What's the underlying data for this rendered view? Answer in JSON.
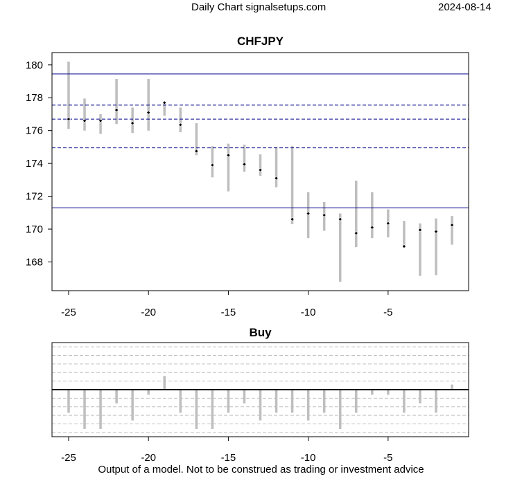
{
  "header": {
    "left_text": "Daily Chart signalsetups.com",
    "date": "2024-08-14",
    "footer": "Output of a model. Not to be construed as trading or investment advice"
  },
  "colors": {
    "bar": "#bebebe",
    "level_line": "#00008b",
    "grid": "#c0c0c0",
    "point": "#000000"
  },
  "chart_data": [
    {
      "type": "range_bar",
      "title": "CHFJPY",
      "xlim": [
        -26.04,
        0.04
      ],
      "ylim": [
        166.25,
        180.75
      ],
      "xticks": [
        -25,
        -20,
        -15,
        -10,
        -5
      ],
      "yticks": [
        168,
        170,
        172,
        174,
        176,
        178,
        180
      ],
      "solid_levels": [
        179.45,
        171.3
      ],
      "dashed_levels": [
        177.55,
        176.7,
        174.95
      ],
      "points": [
        {
          "x": -25,
          "low": 176.1,
          "high": 180.2,
          "close": 176.7
        },
        {
          "x": -24,
          "low": 176.0,
          "high": 177.95,
          "close": 176.6
        },
        {
          "x": -23,
          "low": 175.8,
          "high": 177.0,
          "close": 176.6
        },
        {
          "x": -22,
          "low": 176.4,
          "high": 179.15,
          "close": 177.25
        },
        {
          "x": -21,
          "low": 175.85,
          "high": 177.4,
          "close": 176.45
        },
        {
          "x": -20,
          "low": 176.0,
          "high": 179.15,
          "close": 177.1
        },
        {
          "x": -19,
          "low": 176.9,
          "high": 177.75,
          "close": 177.7
        },
        {
          "x": -18,
          "low": 175.9,
          "high": 177.4,
          "close": 176.35
        },
        {
          "x": -17,
          "low": 174.5,
          "high": 176.45,
          "close": 174.75
        },
        {
          "x": -16,
          "low": 173.15,
          "high": 175.05,
          "close": 173.9
        },
        {
          "x": -15,
          "low": 172.3,
          "high": 175.2,
          "close": 174.5
        },
        {
          "x": -14,
          "low": 173.5,
          "high": 175.15,
          "close": 173.95
        },
        {
          "x": -13,
          "low": 173.25,
          "high": 174.55,
          "close": 173.6
        },
        {
          "x": -12,
          "low": 172.55,
          "high": 175.0,
          "close": 173.1
        },
        {
          "x": -11,
          "low": 170.3,
          "high": 175.05,
          "close": 170.6
        },
        {
          "x": -10,
          "low": 169.45,
          "high": 172.25,
          "close": 170.95
        },
        {
          "x": -9,
          "low": 169.9,
          "high": 171.65,
          "close": 170.85
        },
        {
          "x": -8,
          "low": 166.8,
          "high": 170.95,
          "close": 170.6
        },
        {
          "x": -7,
          "low": 168.9,
          "high": 172.95,
          "close": 169.75
        },
        {
          "x": -6,
          "low": 169.45,
          "high": 172.25,
          "close": 170.1
        },
        {
          "x": -5,
          "low": 169.5,
          "high": 171.2,
          "close": 170.35
        },
        {
          "x": -4,
          "low": 168.95,
          "high": 170.5,
          "close": 168.95
        },
        {
          "x": -3,
          "low": 167.15,
          "high": 170.35,
          "close": 169.95
        },
        {
          "x": -2,
          "low": 167.2,
          "high": 170.65,
          "close": 169.85
        },
        {
          "x": -1,
          "low": 169.05,
          "high": 170.8,
          "close": 170.25
        }
      ]
    },
    {
      "type": "bar",
      "title": "Buy",
      "xlim": [
        -26.04,
        0.04
      ],
      "ylim": [
        -5.5,
        5.5
      ],
      "xticks": [
        -25,
        -20,
        -15,
        -10,
        -5
      ],
      "grid_y": [
        -5,
        -4,
        -3,
        -2,
        -1,
        1,
        2,
        3,
        4,
        5
      ],
      "baseline": 0,
      "points": [
        {
          "x": -25,
          "value": -2.7
        },
        {
          "x": -24,
          "value": -4.6
        },
        {
          "x": -23,
          "value": -4.6
        },
        {
          "x": -22,
          "value": -1.6
        },
        {
          "x": -21,
          "value": -3.6
        },
        {
          "x": -20,
          "value": -0.6
        },
        {
          "x": -19,
          "value": 1.6
        },
        {
          "x": -18,
          "value": -2.7
        },
        {
          "x": -17,
          "value": -4.6
        },
        {
          "x": -16,
          "value": -4.6
        },
        {
          "x": -15,
          "value": -2.7
        },
        {
          "x": -14,
          "value": -1.6
        },
        {
          "x": -13,
          "value": -3.6
        },
        {
          "x": -12,
          "value": -2.7
        },
        {
          "x": -11,
          "value": -2.7
        },
        {
          "x": -10,
          "value": -3.6
        },
        {
          "x": -9,
          "value": -2.7
        },
        {
          "x": -8,
          "value": -4.6
        },
        {
          "x": -7,
          "value": -2.7
        },
        {
          "x": -6,
          "value": -0.6
        },
        {
          "x": -5,
          "value": -0.6
        },
        {
          "x": -4,
          "value": -2.7
        },
        {
          "x": -3,
          "value": -1.6
        },
        {
          "x": -2,
          "value": -2.7
        },
        {
          "x": -1,
          "value": 0.6
        }
      ]
    }
  ]
}
